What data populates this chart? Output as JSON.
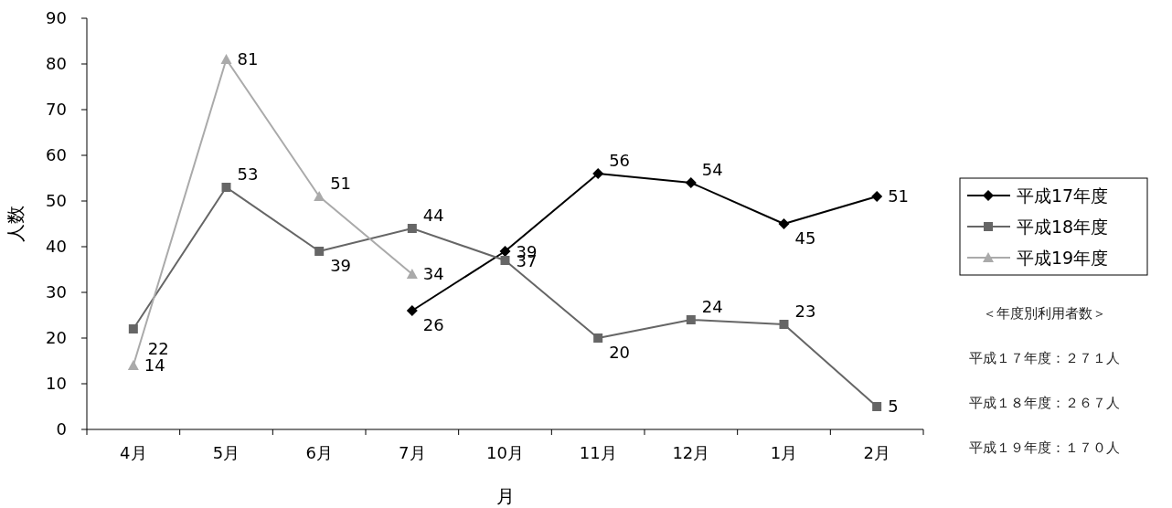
{
  "chart_data": {
    "type": "line",
    "xlabel": "月",
    "ylabel": "人数",
    "categories": [
      "4月",
      "5月",
      "6月",
      "7月",
      "10月",
      "11月",
      "12月",
      "1月",
      "2月"
    ],
    "series": [
      {
        "name": "平成17年度",
        "color": "#000000",
        "marker": "diamond",
        "values": [
          null,
          null,
          null,
          26,
          39,
          56,
          54,
          45,
          51
        ]
      },
      {
        "name": "平成18年度",
        "color": "#666666",
        "marker": "square",
        "values": [
          22,
          53,
          39,
          44,
          37,
          20,
          24,
          23,
          5
        ]
      },
      {
        "name": "平成19年度",
        "color": "#aaaaaa",
        "marker": "triangle",
        "values": [
          14,
          81,
          51,
          34,
          null,
          null,
          null,
          null,
          null
        ]
      }
    ],
    "ylim": [
      0,
      90
    ],
    "yticks": [
      0,
      10,
      20,
      30,
      40,
      50,
      60,
      70,
      80,
      90
    ],
    "data_labels": true,
    "legend": "right",
    "grid": false,
    "line_style": "solid",
    "annotations": [
      "＜年度別利用者数＞",
      "平成１７年度：２７１人",
      "平成１８年度：２６７人",
      "平成１９年度：１７０人"
    ]
  }
}
